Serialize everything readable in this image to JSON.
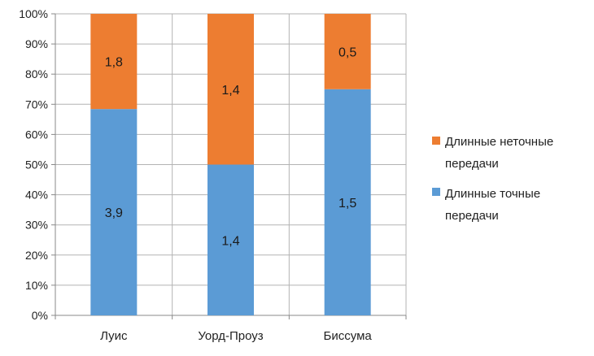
{
  "chart_data": {
    "type": "bar",
    "stacked": "percent",
    "categories": [
      "Луис",
      "Уорд-Проуз",
      "Биссума"
    ],
    "series": [
      {
        "name": "Длинные точные передачи",
        "values": [
          3.9,
          1.4,
          1.5
        ],
        "labels": [
          "3,9",
          "1,4",
          "1,5"
        ],
        "color": "#5b9bd5"
      },
      {
        "name": "Длинные неточные передачи",
        "values": [
          1.8,
          1.4,
          0.5
        ],
        "labels": [
          "1,8",
          "1,4",
          "0,5"
        ],
        "color": "#ed7d31"
      }
    ],
    "ylim": [
      0,
      100
    ],
    "y_ticks": [
      "0%",
      "10%",
      "20%",
      "30%",
      "40%",
      "50%",
      "60%",
      "70%",
      "80%",
      "90%",
      "100%"
    ],
    "grid": true,
    "legend": {
      "placement": "right",
      "entries": [
        {
          "line1": "Длинные неточные",
          "line2": "передачи",
          "color": "#ed7d31"
        },
        {
          "line1": "Длинные точные",
          "line2": "передачи",
          "color": "#5b9bd5"
        }
      ]
    }
  }
}
